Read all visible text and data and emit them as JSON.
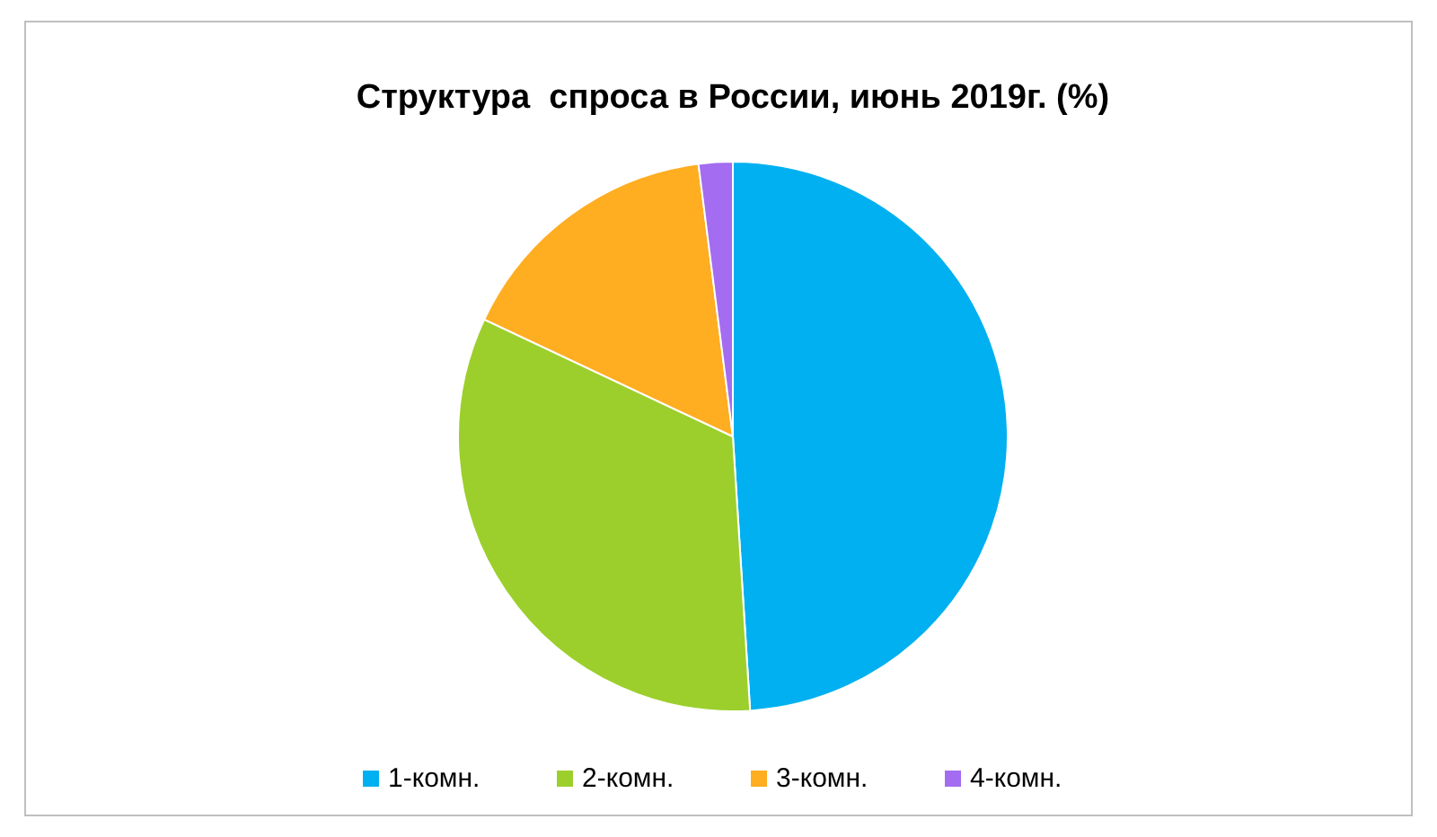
{
  "chart_data": {
    "type": "pie",
    "title": "Структура  спроса в России, июнь 2019г. (%)",
    "categories": [
      "1-комн.",
      "2-комн.",
      "3-комн.",
      "4-комн."
    ],
    "values": [
      49,
      33,
      16,
      2
    ],
    "colors": [
      "#00b0f0",
      "#9ccf2c",
      "#ffad21",
      "#a46cf0"
    ],
    "legend": "bottom"
  }
}
